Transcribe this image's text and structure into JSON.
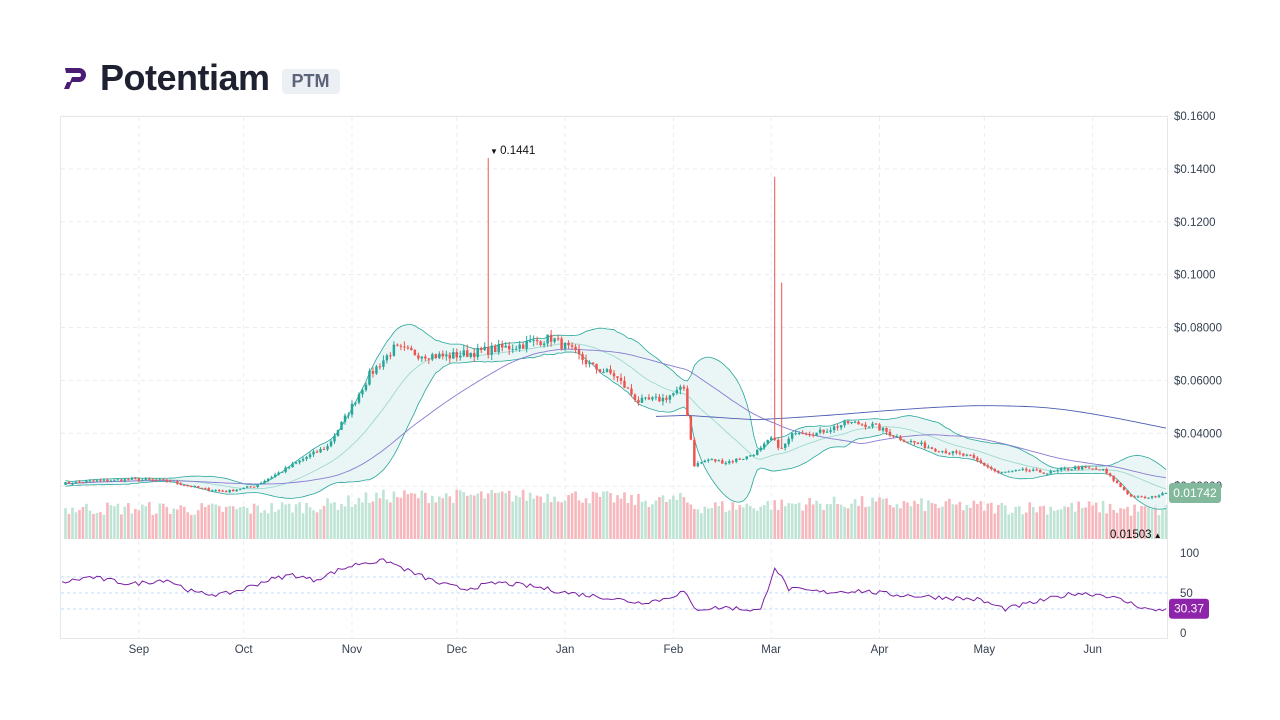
{
  "header": {
    "name": "Potentiam",
    "ticker": "PTM",
    "logo_color": "#4b1c74"
  },
  "colors": {
    "up": "#26a69a",
    "down": "#ef5350",
    "bb_fill": "#e3f4f2",
    "bb_line": "#26a69a",
    "ma_short": "#a0d8d0",
    "ma_mid": "#8a7bd1",
    "ma_long": "#4c5bb3",
    "rsi": "#7b1fa2",
    "price_badge": "#82b99c",
    "rsi_badge": "#8e24aa"
  },
  "chart_data": {
    "type": "candlestick",
    "price_axis": {
      "range": [
        0.0,
        0.16
      ],
      "ticks": [
        {
          "value": 0.16,
          "label": "$0.1600"
        },
        {
          "value": 0.14,
          "label": "$0.1400"
        },
        {
          "value": 0.12,
          "label": "$0.1200"
        },
        {
          "value": 0.1,
          "label": "$0.1000"
        },
        {
          "value": 0.08,
          "label": "$0.08000"
        },
        {
          "value": 0.06,
          "label": "$0.06000"
        },
        {
          "value": 0.04,
          "label": "$0.04000"
        },
        {
          "value": 0.02,
          "label": "$0.02000"
        }
      ]
    },
    "rsi_axis": {
      "range": [
        0,
        100
      ],
      "ticks": [
        {
          "value": 100,
          "label": "100"
        },
        {
          "value": 50,
          "label": "50"
        },
        {
          "value": 0,
          "label": "0"
        }
      ],
      "bands": [
        30,
        50,
        70
      ]
    },
    "months": [
      {
        "label": "Sep",
        "day": 22
      },
      {
        "label": "Oct",
        "day": 52
      },
      {
        "label": "Nov",
        "day": 83
      },
      {
        "label": "Dec",
        "day": 113
      },
      {
        "label": "Jan",
        "day": 144
      },
      {
        "label": "Feb",
        "day": 175
      },
      {
        "label": "Mar",
        "day": 203
      },
      {
        "label": "Apr",
        "day": 234
      },
      {
        "label": "May",
        "day": 264
      },
      {
        "label": "Jun",
        "day": 295
      }
    ],
    "days_total": 316,
    "close_anchors": [
      [
        0,
        0.021
      ],
      [
        10,
        0.022
      ],
      [
        20,
        0.0225
      ],
      [
        30,
        0.022
      ],
      [
        40,
        0.019
      ],
      [
        47,
        0.018
      ],
      [
        55,
        0.02
      ],
      [
        62,
        0.025
      ],
      [
        70,
        0.031
      ],
      [
        76,
        0.035
      ],
      [
        82,
        0.048
      ],
      [
        88,
        0.062
      ],
      [
        95,
        0.072
      ],
      [
        102,
        0.07
      ],
      [
        110,
        0.069
      ],
      [
        120,
        0.071
      ],
      [
        130,
        0.073
      ],
      [
        140,
        0.076
      ],
      [
        145,
        0.072
      ],
      [
        152,
        0.065
      ],
      [
        158,
        0.062
      ],
      [
        165,
        0.052
      ],
      [
        172,
        0.053
      ],
      [
        178,
        0.057
      ],
      [
        181,
        0.028
      ],
      [
        185,
        0.03
      ],
      [
        190,
        0.029
      ],
      [
        196,
        0.031
      ],
      [
        200,
        0.034
      ],
      [
        203,
        0.038
      ],
      [
        206,
        0.034
      ],
      [
        210,
        0.041
      ],
      [
        216,
        0.04
      ],
      [
        225,
        0.044
      ],
      [
        232,
        0.043
      ],
      [
        240,
        0.038
      ],
      [
        250,
        0.034
      ],
      [
        260,
        0.031
      ],
      [
        268,
        0.025
      ],
      [
        276,
        0.026
      ],
      [
        282,
        0.025
      ],
      [
        290,
        0.027
      ],
      [
        298,
        0.026
      ],
      [
        306,
        0.016
      ],
      [
        311,
        0.0155
      ],
      [
        316,
        0.0174
      ]
    ],
    "spikes": [
      {
        "day": 122,
        "high": 0.1441
      },
      {
        "day": 204,
        "high": 0.137
      },
      {
        "day": 206,
        "high": 0.097
      }
    ],
    "high_label": "0.1441",
    "low_label": "0.01503",
    "low_value": 0.01503,
    "low_day": 312,
    "last_price": 0.01742,
    "last_price_label": "0.01742",
    "last_rsi": 30.37,
    "last_rsi_label": "30.37",
    "rsi_anchors": [
      [
        0,
        63
      ],
      [
        8,
        70
      ],
      [
        20,
        61
      ],
      [
        30,
        67
      ],
      [
        38,
        50
      ],
      [
        46,
        48
      ],
      [
        52,
        55
      ],
      [
        58,
        65
      ],
      [
        66,
        73
      ],
      [
        72,
        66
      ],
      [
        80,
        80
      ],
      [
        86,
        88
      ],
      [
        93,
        90
      ],
      [
        100,
        76
      ],
      [
        108,
        62
      ],
      [
        115,
        55
      ],
      [
        125,
        63
      ],
      [
        135,
        58
      ],
      [
        145,
        50
      ],
      [
        155,
        45
      ],
      [
        165,
        38
      ],
      [
        172,
        42
      ],
      [
        178,
        52
      ],
      [
        181,
        30
      ],
      [
        190,
        32
      ],
      [
        200,
        28
      ],
      [
        204,
        83
      ],
      [
        208,
        55
      ],
      [
        218,
        51
      ],
      [
        228,
        53
      ],
      [
        238,
        48
      ],
      [
        250,
        45
      ],
      [
        262,
        42
      ],
      [
        270,
        30
      ],
      [
        278,
        38
      ],
      [
        290,
        50
      ],
      [
        298,
        48
      ],
      [
        304,
        40
      ],
      [
        312,
        28
      ],
      [
        316,
        30.37
      ]
    ]
  }
}
